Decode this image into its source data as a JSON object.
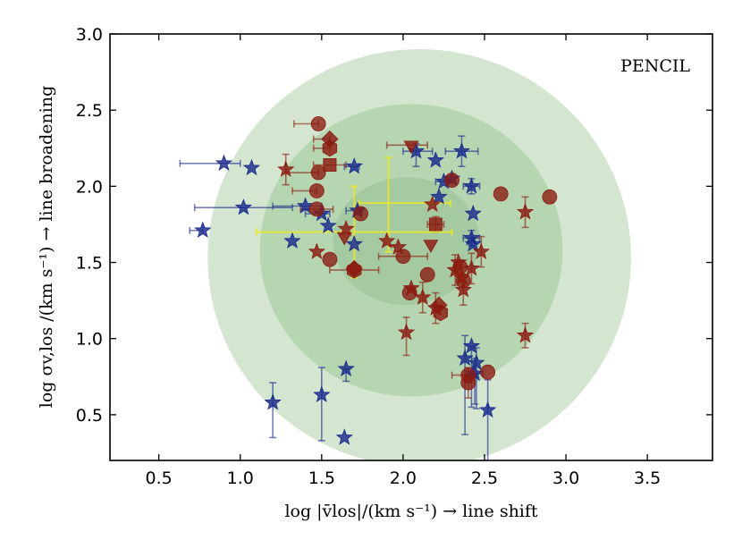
{
  "chart_data": {
    "type": "scatter",
    "title": "",
    "annotation": "PENCIL",
    "xlabel": "log |v̄los|/(km s⁻¹) → line shift",
    "ylabel": "log σv,los /(km s⁻¹) → line broadening",
    "xlim": [
      0.2,
      3.9
    ],
    "ylim": [
      0.2,
      3.0
    ],
    "xticks": [
      "0.5",
      "1.0",
      "1.5",
      "2.0",
      "2.5",
      "3.0",
      "3.5"
    ],
    "yticks": [
      "0.5",
      "1.0",
      "1.5",
      "2.0",
      "2.5",
      "3.0"
    ],
    "ellipses": [
      {
        "name": "outer",
        "cx": 2.1,
        "cy": 1.53,
        "rx": 1.3,
        "ry": 1.37,
        "color": "#d4e6d0"
      },
      {
        "name": "middle",
        "cx": 2.05,
        "cy": 1.58,
        "rx": 0.93,
        "ry": 0.96,
        "color": "#b6d6b1"
      },
      {
        "name": "inner",
        "cx": 2.02,
        "cy": 1.64,
        "rx": 0.45,
        "ry": 0.42,
        "color": "#a5c9a0"
      }
    ],
    "colors": {
      "blue": "#1a2a8c",
      "red": "#8b1a10",
      "yellow": "#e8e82a"
    },
    "series": [
      {
        "name": "blue-stars",
        "marker": "star",
        "color": "#1a2a8c",
        "points": [
          {
            "x": 0.77,
            "y": 1.71,
            "xerr": [
              0.08,
              0.0
            ],
            "yerr": [
              0,
              0
            ]
          },
          {
            "x": 0.9,
            "y": 2.15,
            "xerr": [
              0.27,
              0.1
            ],
            "yerr": [
              0,
              0
            ]
          },
          {
            "x": 1.07,
            "y": 2.12,
            "xerr": [
              0,
              0
            ],
            "yerr": [
              0,
              0
            ]
          },
          {
            "x": 1.02,
            "y": 1.86,
            "xerr": [
              0.3,
              0.3
            ],
            "yerr": [
              0,
              0
            ]
          },
          {
            "x": 1.2,
            "y": 0.58,
            "xerr": [
              0,
              0
            ],
            "yerr": [
              0.23,
              0.13
            ]
          },
          {
            "x": 1.32,
            "y": 1.64,
            "xerr": [
              0,
              0
            ],
            "yerr": [
              0,
              0
            ]
          },
          {
            "x": 1.4,
            "y": 1.87,
            "xerr": [
              0.2,
              0.1
            ],
            "yerr": [
              0,
              0
            ]
          },
          {
            "x": 1.5,
            "y": 0.63,
            "xerr": [
              0,
              0
            ],
            "yerr": [
              0.3,
              0.18
            ]
          },
          {
            "x": 1.5,
            "y": 1.82,
            "xerr": [
              0.1,
              0.05
            ],
            "yerr": [
              0,
              0
            ]
          },
          {
            "x": 1.54,
            "y": 1.74,
            "xerr": [
              0,
              0
            ],
            "yerr": [
              0,
              0
            ]
          },
          {
            "x": 1.64,
            "y": 0.35,
            "xerr": [
              0,
              0
            ],
            "yerr": [
              0,
              0
            ]
          },
          {
            "x": 1.65,
            "y": 0.8,
            "xerr": [
              0,
              0
            ],
            "yerr": [
              0.08,
              0.0
            ]
          },
          {
            "x": 1.7,
            "y": 2.13,
            "xerr": [
              0.06,
              0.03
            ],
            "yerr": [
              0,
              0
            ]
          },
          {
            "x": 1.72,
            "y": 1.84,
            "xerr": [
              0.07,
              0.03
            ],
            "yerr": [
              0,
              0
            ]
          },
          {
            "x": 1.7,
            "y": 1.62,
            "xerr": [
              0,
              0
            ],
            "yerr": [
              0,
              0
            ]
          },
          {
            "x": 2.08,
            "y": 2.23,
            "xerr": [
              0.08,
              0.1
            ],
            "yerr": [
              0.1,
              0.05
            ]
          },
          {
            "x": 2.2,
            "y": 2.17,
            "xerr": [
              0,
              0
            ],
            "yerr": [
              0,
              0
            ]
          },
          {
            "x": 2.22,
            "y": 1.93,
            "xerr": [
              0,
              0
            ],
            "yerr": [
              0,
              0
            ]
          },
          {
            "x": 2.25,
            "y": 2.03,
            "xerr": [
              0.05,
              0.05
            ],
            "yerr": [
              0,
              0
            ]
          },
          {
            "x": 2.3,
            "y": 2.05,
            "xerr": [
              0,
              0
            ],
            "yerr": [
              0,
              0
            ]
          },
          {
            "x": 2.36,
            "y": 2.23,
            "xerr": [
              0.1,
              0.1
            ],
            "yerr": [
              0.1,
              0.1
            ]
          },
          {
            "x": 2.42,
            "y": 2.0,
            "xerr": [
              0.05,
              0.05
            ],
            "yerr": [
              0.05,
              0.05
            ]
          },
          {
            "x": 2.43,
            "y": 1.82,
            "xerr": [
              0,
              0
            ],
            "yerr": [
              0,
              0
            ]
          },
          {
            "x": 2.42,
            "y": 1.66,
            "xerr": [
              0.05,
              0.05
            ],
            "yerr": [
              0.05,
              0.05
            ]
          },
          {
            "x": 2.43,
            "y": 1.62,
            "xerr": [
              0,
              0
            ],
            "yerr": [
              0,
              0
            ]
          },
          {
            "x": 2.38,
            "y": 0.87,
            "xerr": [
              0,
              0
            ],
            "yerr": [
              0.5,
              0.15
            ]
          },
          {
            "x": 2.42,
            "y": 0.95,
            "xerr": [
              0,
              0
            ],
            "yerr": [
              0.4,
              0.0
            ]
          },
          {
            "x": 2.44,
            "y": 0.77,
            "xerr": [
              0.05,
              0.05
            ],
            "yerr": [
              0.2,
              0.1
            ]
          },
          {
            "x": 2.45,
            "y": 0.84,
            "xerr": [
              0,
              0
            ],
            "yerr": [
              0.3,
              0.1
            ]
          },
          {
            "x": 2.52,
            "y": 0.53,
            "xerr": [
              0,
              0
            ],
            "yerr": [
              0.4,
              0.2
            ]
          }
        ]
      },
      {
        "name": "red-stars",
        "marker": "star",
        "color": "#8b1a10",
        "points": [
          {
            "x": 1.28,
            "y": 2.11,
            "xerr": [
              0,
              0
            ],
            "yerr": [
              0.1,
              0.1
            ]
          },
          {
            "x": 1.47,
            "y": 1.57,
            "xerr": [
              0,
              0
            ],
            "yerr": [
              0,
              0
            ]
          },
          {
            "x": 1.65,
            "y": 1.72,
            "xerr": [
              0,
              0
            ],
            "yerr": [
              0,
              0
            ]
          },
          {
            "x": 1.9,
            "y": 1.64,
            "xerr": [
              0,
              0
            ],
            "yerr": [
              0,
              0
            ]
          },
          {
            "x": 1.97,
            "y": 1.6,
            "xerr": [
              0,
              0
            ],
            "yerr": [
              0,
              0
            ]
          },
          {
            "x": 2.02,
            "y": 1.04,
            "xerr": [
              0,
              0
            ],
            "yerr": [
              0.15,
              0.1
            ]
          },
          {
            "x": 2.05,
            "y": 1.33,
            "xerr": [
              0,
              0
            ],
            "yerr": [
              0,
              0
            ]
          },
          {
            "x": 2.12,
            "y": 1.27,
            "xerr": [
              0,
              0
            ],
            "yerr": [
              0.1,
              0.1
            ]
          },
          {
            "x": 2.18,
            "y": 1.88,
            "xerr": [
              0,
              0
            ],
            "yerr": [
              0,
              0
            ]
          },
          {
            "x": 2.2,
            "y": 1.2,
            "xerr": [
              0,
              0
            ],
            "yerr": [
              0.1,
              0.1
            ]
          },
          {
            "x": 2.32,
            "y": 1.45,
            "xerr": [
              0,
              0
            ],
            "yerr": [
              0.1,
              0.1
            ]
          },
          {
            "x": 2.34,
            "y": 1.5,
            "xerr": [
              0,
              0
            ],
            "yerr": [
              0,
              0
            ]
          },
          {
            "x": 2.36,
            "y": 1.4,
            "xerr": [
              0,
              0
            ],
            "yerr": [
              0,
              0
            ]
          },
          {
            "x": 2.37,
            "y": 1.32,
            "xerr": [
              0,
              0
            ],
            "yerr": [
              0.1,
              0.05
            ]
          },
          {
            "x": 2.42,
            "y": 1.46,
            "xerr": [
              0,
              0
            ],
            "yerr": [
              0.1,
              0.1
            ]
          },
          {
            "x": 2.48,
            "y": 1.57,
            "xerr": [
              0,
              0
            ],
            "yerr": [
              0.1,
              0.1
            ]
          },
          {
            "x": 2.75,
            "y": 1.83,
            "xerr": [
              0,
              0
            ],
            "yerr": [
              0.1,
              0.1
            ]
          },
          {
            "x": 2.75,
            "y": 1.02,
            "xerr": [
              0,
              0
            ],
            "yerr": [
              0.08,
              0.08
            ]
          }
        ]
      },
      {
        "name": "red-circles",
        "marker": "circle",
        "color": "#8b1a10",
        "points": [
          {
            "x": 1.48,
            "y": 2.41,
            "xerr": [
              0.15,
              0.0
            ],
            "yerr": [
              0,
              0
            ]
          },
          {
            "x": 1.48,
            "y": 2.09,
            "xerr": [
              0.2,
              0.0
            ],
            "yerr": [
              0,
              0
            ]
          },
          {
            "x": 1.47,
            "y": 1.97,
            "xerr": [
              0.15,
              0.0
            ],
            "yerr": [
              0,
              0
            ]
          },
          {
            "x": 1.47,
            "y": 1.85,
            "xerr": [
              0.1,
              0.1
            ],
            "yerr": [
              0,
              0
            ]
          },
          {
            "x": 1.55,
            "y": 1.52,
            "xerr": [
              0,
              0
            ],
            "yerr": [
              0,
              0
            ]
          },
          {
            "x": 1.74,
            "y": 1.82,
            "xerr": [
              0,
              0
            ],
            "yerr": [
              0,
              0
            ]
          },
          {
            "x": 2.0,
            "y": 1.54,
            "xerr": [
              0.15,
              0.15
            ],
            "yerr": [
              0,
              0
            ]
          },
          {
            "x": 2.04,
            "y": 1.3,
            "xerr": [
              0,
              0
            ],
            "yerr": [
              0,
              0
            ]
          },
          {
            "x": 2.15,
            "y": 1.42,
            "xerr": [
              0,
              0
            ],
            "yerr": [
              0,
              0
            ]
          },
          {
            "x": 2.3,
            "y": 2.04,
            "xerr": [
              0,
              0
            ],
            "yerr": [
              0,
              0
            ]
          },
          {
            "x": 2.35,
            "y": 1.47,
            "xerr": [
              0,
              0
            ],
            "yerr": [
              0,
              0
            ]
          },
          {
            "x": 2.37,
            "y": 1.38,
            "xerr": [
              0,
              0
            ],
            "yerr": [
              0,
              0
            ]
          },
          {
            "x": 2.4,
            "y": 0.76,
            "xerr": [
              0.1,
              0.05
            ],
            "yerr": [
              0.05,
              0.05
            ]
          },
          {
            "x": 2.4,
            "y": 0.71,
            "xerr": [
              0,
              0
            ],
            "yerr": [
              0.1,
              0.05
            ]
          },
          {
            "x": 2.52,
            "y": 0.78,
            "xerr": [
              0,
              0
            ],
            "yerr": [
              0,
              0
            ]
          },
          {
            "x": 2.6,
            "y": 1.95,
            "xerr": [
              0,
              0
            ],
            "yerr": [
              0,
              0
            ]
          },
          {
            "x": 2.9,
            "y": 1.93,
            "xerr": [
              0,
              0
            ],
            "yerr": [
              0,
              0
            ]
          }
        ]
      },
      {
        "name": "red-hexagons",
        "marker": "hexagon",
        "color": "#8b1a10",
        "points": [
          {
            "x": 1.55,
            "y": 2.25,
            "xerr": [
              0.1,
              0.0
            ],
            "yerr": [
              0,
              0
            ]
          },
          {
            "x": 1.7,
            "y": 1.45,
            "xerr": [
              0.15,
              0.15
            ],
            "yerr": [
              0,
              0
            ]
          },
          {
            "x": 2.23,
            "y": 1.17,
            "xerr": [
              0,
              0
            ],
            "yerr": [
              0,
              0
            ]
          }
        ]
      },
      {
        "name": "red-diamonds",
        "marker": "diamond",
        "color": "#8b1a10",
        "points": [
          {
            "x": 1.55,
            "y": 2.31,
            "xerr": [
              0.1,
              0.0
            ],
            "yerr": [
              0,
              0
            ]
          },
          {
            "x": 1.7,
            "y": 1.46,
            "xerr": [
              0,
              0
            ],
            "yerr": [
              0,
              0
            ]
          },
          {
            "x": 2.22,
            "y": 1.22,
            "xerr": [
              0,
              0
            ],
            "yerr": [
              0,
              0
            ]
          }
        ]
      },
      {
        "name": "red-squares",
        "marker": "square",
        "color": "#8b1a10",
        "points": [
          {
            "x": 1.55,
            "y": 2.14,
            "xerr": [
              0.1,
              0.1
            ],
            "yerr": [
              0,
              0
            ]
          },
          {
            "x": 2.2,
            "y": 1.75,
            "xerr": [
              0.05,
              0.05
            ],
            "yerr": [
              0.05,
              0.05
            ]
          }
        ]
      },
      {
        "name": "red-triangles",
        "marker": "triangle-down",
        "color": "#8b1a10",
        "points": [
          {
            "x": 2.05,
            "y": 2.27,
            "xerr": [
              0.15,
              0.1
            ],
            "yerr": [
              0,
              0
            ]
          },
          {
            "x": 2.17,
            "y": 1.62,
            "xerr": [
              0,
              0
            ],
            "yerr": [
              0,
              0
            ]
          },
          {
            "x": 1.64,
            "y": 1.67,
            "xerr": [
              0,
              0
            ],
            "yerr": [
              0,
              0
            ]
          }
        ]
      },
      {
        "name": "yellow-crosses",
        "marker": "none",
        "color": "#e8e82a",
        "points": [
          {
            "x": 1.91,
            "y": 1.89,
            "xerr": [
              0.18,
              0.38
            ],
            "yerr": [
              0.32,
              0.3
            ]
          },
          {
            "x": 1.7,
            "y": 1.7,
            "xerr": [
              0.6,
              0.6
            ],
            "yerr": [
              0.3,
              0.3
            ]
          }
        ]
      }
    ]
  }
}
